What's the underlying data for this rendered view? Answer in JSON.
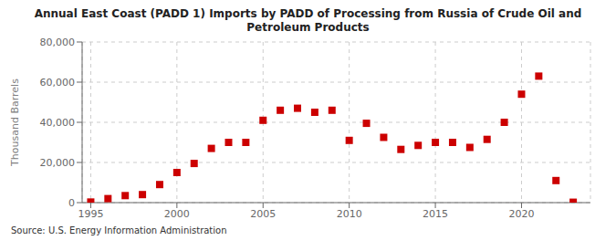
{
  "chart_data": {
    "type": "scatter",
    "title": "Annual East Coast (PADD 1) Imports by PADD of Processing from Russia of Crude Oil and\nPetroleum Products",
    "y_label": "Thousand Barrels",
    "annotations": [
      "Source: U.S. Energy Information Administration"
    ],
    "x": [
      1995,
      1996,
      1997,
      1998,
      1999,
      2000,
      2001,
      2002,
      2003,
      2004,
      2005,
      2006,
      2007,
      2008,
      2009,
      2010,
      2011,
      2012,
      2013,
      2014,
      2015,
      2016,
      2017,
      2018,
      2019,
      2020,
      2021,
      2022,
      2023
    ],
    "values": [
      300,
      2000,
      3500,
      4000,
      9000,
      15000,
      19500,
      27000,
      30000,
      30000,
      41000,
      46000,
      47000,
      45000,
      46000,
      31000,
      39500,
      32500,
      26500,
      28500,
      30000,
      30000,
      27500,
      31500,
      40000,
      54000,
      63000,
      11000,
      200
    ],
    "color": "#cc0000",
    "marker": "square",
    "xlim": [
      1994.5,
      2024
    ],
    "ylim": [
      0,
      80000
    ],
    "xticks": [
      1995,
      2000,
      2005,
      2010,
      2015,
      2020
    ],
    "yticks": [
      0,
      {
        "value": 20000,
        "label": "20,000"
      },
      {
        "value": 40000,
        "label": "40,000"
      },
      {
        "value": 60000,
        "label": "60,000"
      },
      {
        "value": 80000,
        "label": "80,000"
      }
    ],
    "grid": true
  }
}
